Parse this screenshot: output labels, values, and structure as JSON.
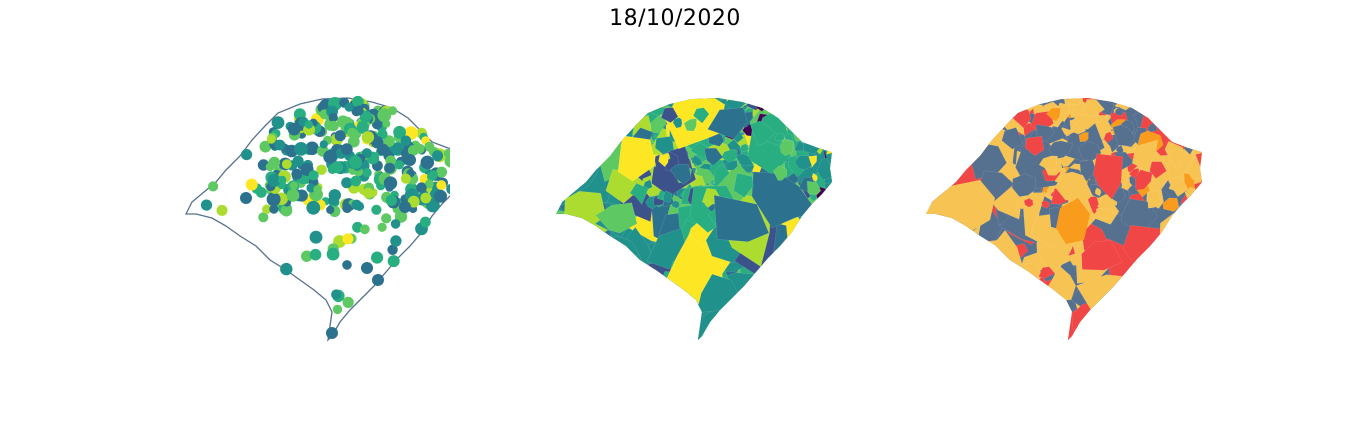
{
  "title": "18/10/2020",
  "colors": {
    "background": "#ffffff",
    "outline": "#56708f",
    "viridis": [
      "#440154",
      "#3b528b",
      "#2c728e",
      "#21918c",
      "#28ae80",
      "#5ec962",
      "#addc30",
      "#fde725"
    ],
    "category_base": "#56708f",
    "category_yellow": "#f7c353",
    "category_orange": "#f99b1c",
    "category_red": "#f14646"
  },
  "panels": [
    {
      "name": "point-map",
      "kind": "points",
      "fill": "none",
      "outline": true
    },
    {
      "name": "choropleth-map",
      "kind": "continuous",
      "colormap": "viridis"
    },
    {
      "name": "category-map",
      "kind": "categorical",
      "categories": [
        "blue",
        "yellow",
        "orange",
        "red"
      ]
    }
  ]
}
